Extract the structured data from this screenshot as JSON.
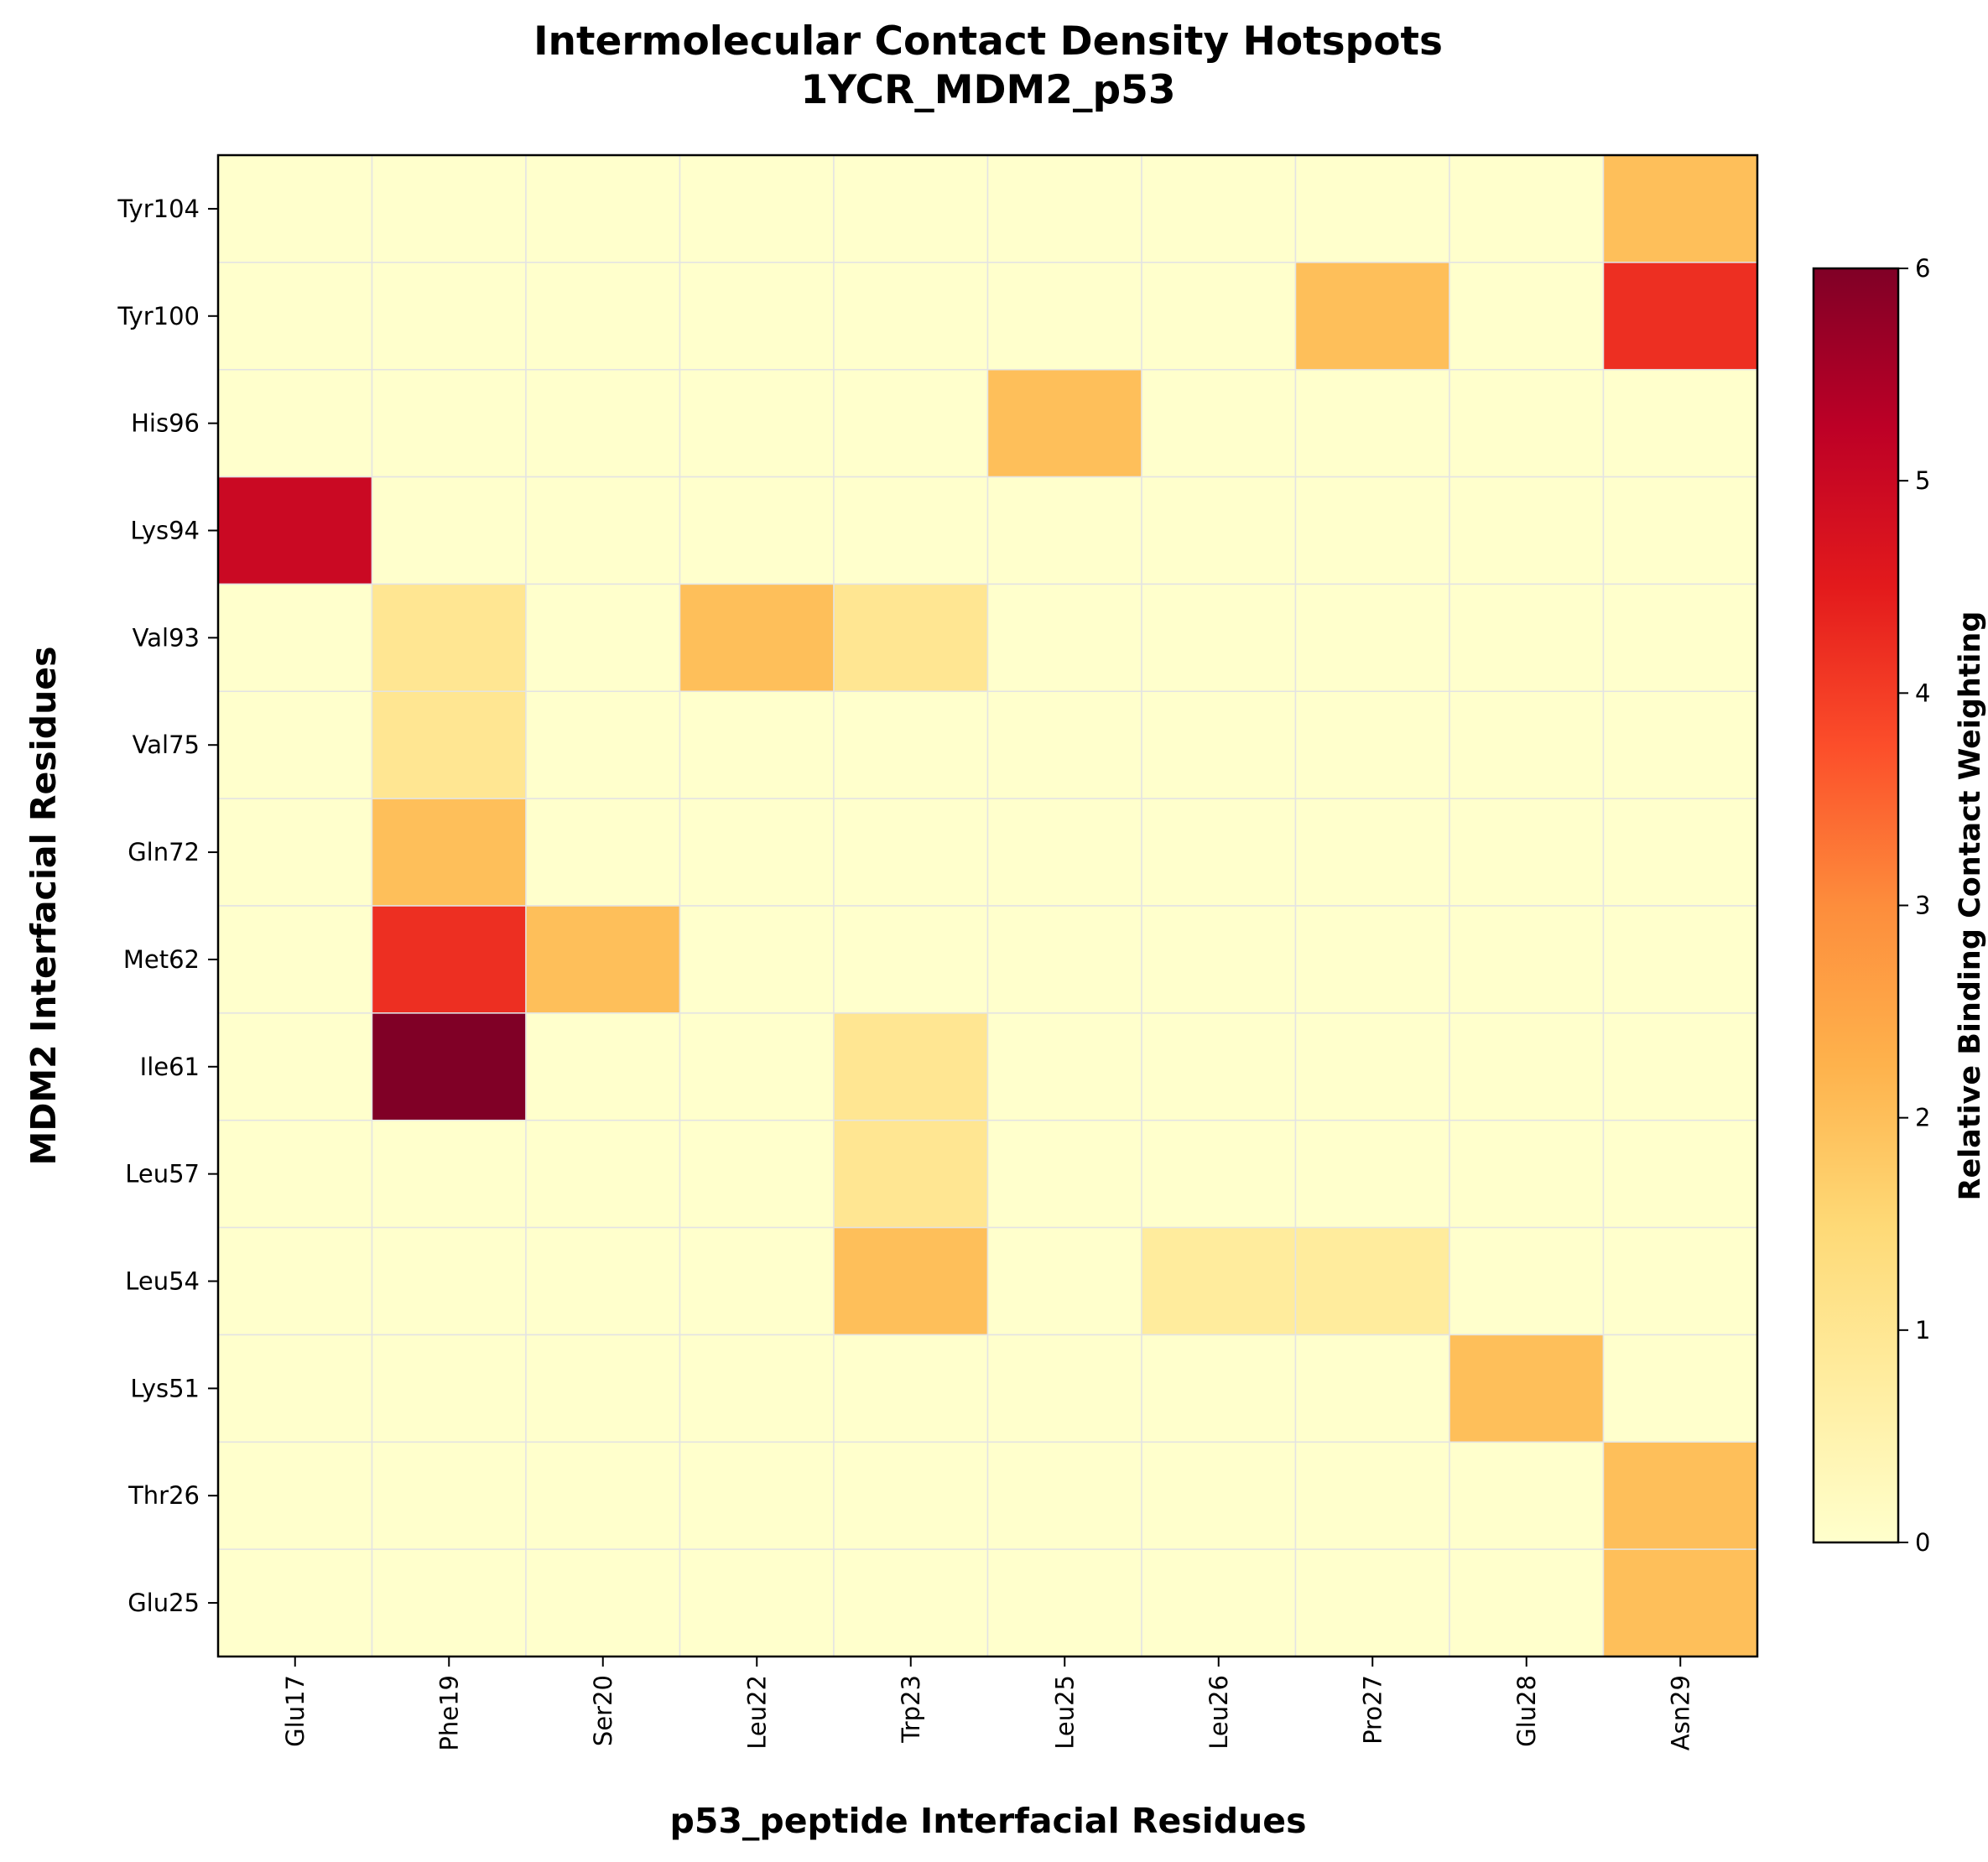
{
  "chart_data": {
    "type": "heatmap",
    "title": "Intermolecular Contact Density Hotspots",
    "subtitle": "1YCR_MDM2_p53",
    "xlabel": "p53_peptide Interfacial Residues",
    "ylabel": "MDM2 Interfacial Residues",
    "x_categories": [
      "Glu17",
      "Phe19",
      "Ser20",
      "Leu22",
      "Trp23",
      "Leu25",
      "Leu26",
      "Pro27",
      "Glu28",
      "Asn29"
    ],
    "y_categories": [
      "Tyr104",
      "Tyr100",
      "His96",
      "Lys94",
      "Val93",
      "Val75",
      "Gln72",
      "Met62",
      "Ile61",
      "Leu57",
      "Leu54",
      "Lys51",
      "Thr26",
      "Glu25"
    ],
    "values": [
      [
        0,
        0,
        0,
        0,
        0,
        0,
        0,
        0,
        0,
        2
      ],
      [
        0,
        0,
        0,
        0,
        0,
        0,
        0,
        2,
        0,
        4.2
      ],
      [
        0,
        0,
        0,
        0,
        0,
        2,
        0,
        0,
        0,
        0
      ],
      [
        5,
        0,
        0,
        0,
        0,
        0,
        0,
        0,
        0,
        0
      ],
      [
        0,
        1,
        0,
        2,
        1,
        0,
        0,
        0,
        0,
        0
      ],
      [
        0,
        1,
        0,
        0,
        0,
        0,
        0,
        0,
        0,
        0
      ],
      [
        0,
        2,
        0,
        0,
        0,
        0,
        0,
        0,
        0,
        0
      ],
      [
        0,
        4.2,
        2,
        0,
        0,
        0,
        0,
        0,
        0,
        0
      ],
      [
        0,
        6,
        0,
        0,
        1,
        0,
        0,
        0,
        0,
        0
      ],
      [
        0,
        0,
        0,
        0,
        1,
        0,
        0,
        0,
        0,
        0
      ],
      [
        0,
        0,
        0,
        0,
        2,
        0,
        0.8,
        0.8,
        0,
        0
      ],
      [
        0,
        0,
        0,
        0,
        0,
        0,
        0,
        0,
        2,
        0
      ],
      [
        0,
        0,
        0,
        0,
        0,
        0,
        0,
        0,
        0,
        2
      ],
      [
        0,
        0,
        0,
        0,
        0,
        0,
        0,
        0,
        0,
        2
      ]
    ],
    "colorbar": {
      "label": "Relative Binding Contact Weighting",
      "range": [
        0,
        6
      ],
      "ticks": [
        "0",
        "1",
        "2",
        "3",
        "4",
        "5",
        "6"
      ],
      "colormap": "YlOrRd"
    }
  }
}
